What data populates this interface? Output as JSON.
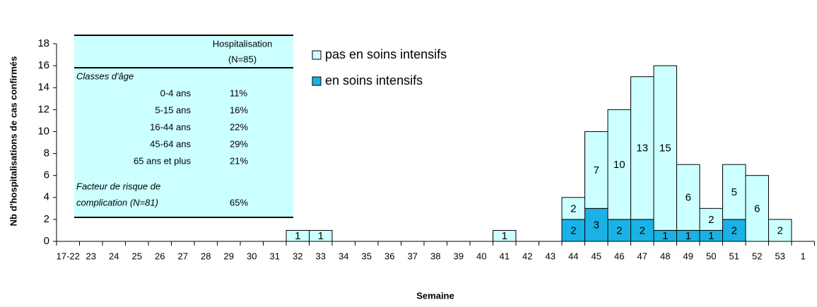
{
  "chart_data": {
    "type": "stacked_bar",
    "x_label": "Semaine",
    "y_label": "Nb d'hospitalisations de cas confirmés",
    "categories": [
      "17-22",
      "23",
      "24",
      "25",
      "26",
      "27",
      "28",
      "29",
      "30",
      "31",
      "32",
      "33",
      "34",
      "35",
      "36",
      "37",
      "38",
      "39",
      "40",
      "41",
      "42",
      "43",
      "44",
      "45",
      "46",
      "47",
      "48",
      "49",
      "50",
      "51",
      "52",
      "53",
      "1"
    ],
    "series": [
      {
        "name": "pas en soins intensifs",
        "color": "#ccffff",
        "values": [
          0,
          0,
          0,
          0,
          0,
          0,
          0,
          0,
          0,
          0,
          1,
          1,
          0,
          0,
          0,
          0,
          0,
          0,
          0,
          1,
          0,
          0,
          2,
          7,
          10,
          13,
          15,
          6,
          2,
          5,
          6,
          2,
          0
        ]
      },
      {
        "name": "en soins intensifs",
        "color": "#1ab2e6",
        "values": [
          0,
          0,
          0,
          0,
          0,
          0,
          0,
          0,
          0,
          0,
          0,
          0,
          0,
          0,
          0,
          0,
          0,
          0,
          0,
          0,
          0,
          0,
          2,
          3,
          2,
          2,
          1,
          1,
          1,
          2,
          0,
          0,
          0
        ]
      }
    ],
    "ylim": [
      0,
      18
    ],
    "yticks": [
      0,
      2,
      4,
      6,
      8,
      10,
      12,
      14,
      16,
      18
    ]
  },
  "table": {
    "header": [
      "Hospitalisation",
      "(N=85)"
    ],
    "section1": "Classes d'âge",
    "rows": [
      [
        "0-4 ans",
        "11%"
      ],
      [
        "5-15 ans",
        "16%"
      ],
      [
        "16-44 ans",
        "22%"
      ],
      [
        "45-64 ans",
        "29%"
      ],
      [
        "65 ans et plus",
        "21%"
      ]
    ],
    "section2": [
      "Facteur de risque de",
      "complication (N=81)"
    ],
    "section2_value": "65%"
  }
}
